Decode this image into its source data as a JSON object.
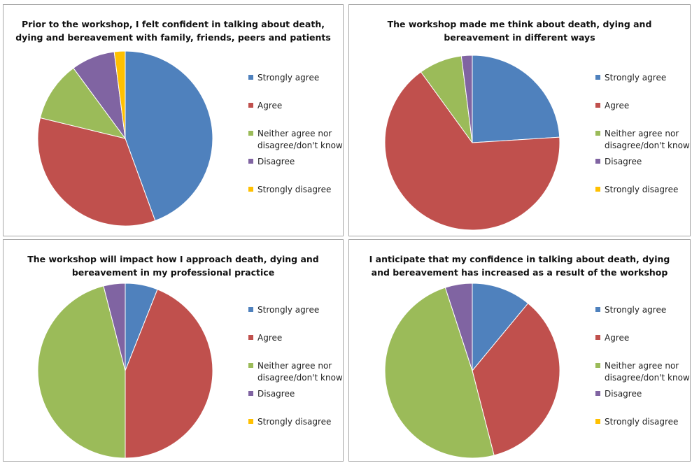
{
  "legend_labels": [
    "Strongly agree",
    "Agree",
    "Neither agree nor\ndisagree/don't know",
    "Disagree",
    "Strongly disagree"
  ],
  "colors": [
    "#4f81bd",
    "#c0504d",
    "#9bbb59",
    "#8064a2",
    "#ffc000"
  ],
  "chart_data": [
    {
      "type": "pie",
      "title_lines": [
        "Prior to the workshop, I felt confident in talking about death,",
        "dying and bereavement with family, friends, peers and patients"
      ],
      "categories": [
        "Strongly agree",
        "Agree",
        "Neither agree nor disagree/don't know",
        "Disagree",
        "Strongly disagree"
      ],
      "values": [
        44,
        34,
        11,
        8,
        2
      ],
      "legend_position": "right"
    },
    {
      "type": "pie",
      "title_lines": [
        "The workshop made me think about death, dying and",
        "bereavement in different ways"
      ],
      "categories": [
        "Strongly agree",
        "Agree",
        "Neither agree nor disagree/don't know",
        "Disagree",
        "Strongly disagree"
      ],
      "values": [
        24,
        66,
        8,
        2,
        0
      ],
      "legend_position": "right"
    },
    {
      "type": "pie",
      "title_lines": [
        "The workshop will impact how I approach death, dying and",
        "bereavement in my professional practice"
      ],
      "categories": [
        "Strongly agree",
        "Agree",
        "Neither agree nor disagree/don't know",
        "Disagree",
        "Strongly disagree"
      ],
      "values": [
        6,
        44,
        46,
        4,
        0
      ],
      "legend_position": "right"
    },
    {
      "type": "pie",
      "title_lines": [
        "I anticipate that my confidence in talking about death, dying",
        "and bereavement has increased as a result of the workshop"
      ],
      "categories": [
        "Strongly agree",
        "Agree",
        "Neither agree nor disagree/don't know",
        "Disagree",
        "Strongly disagree"
      ],
      "values": [
        11,
        35,
        49,
        5,
        0
      ],
      "legend_position": "right"
    }
  ]
}
